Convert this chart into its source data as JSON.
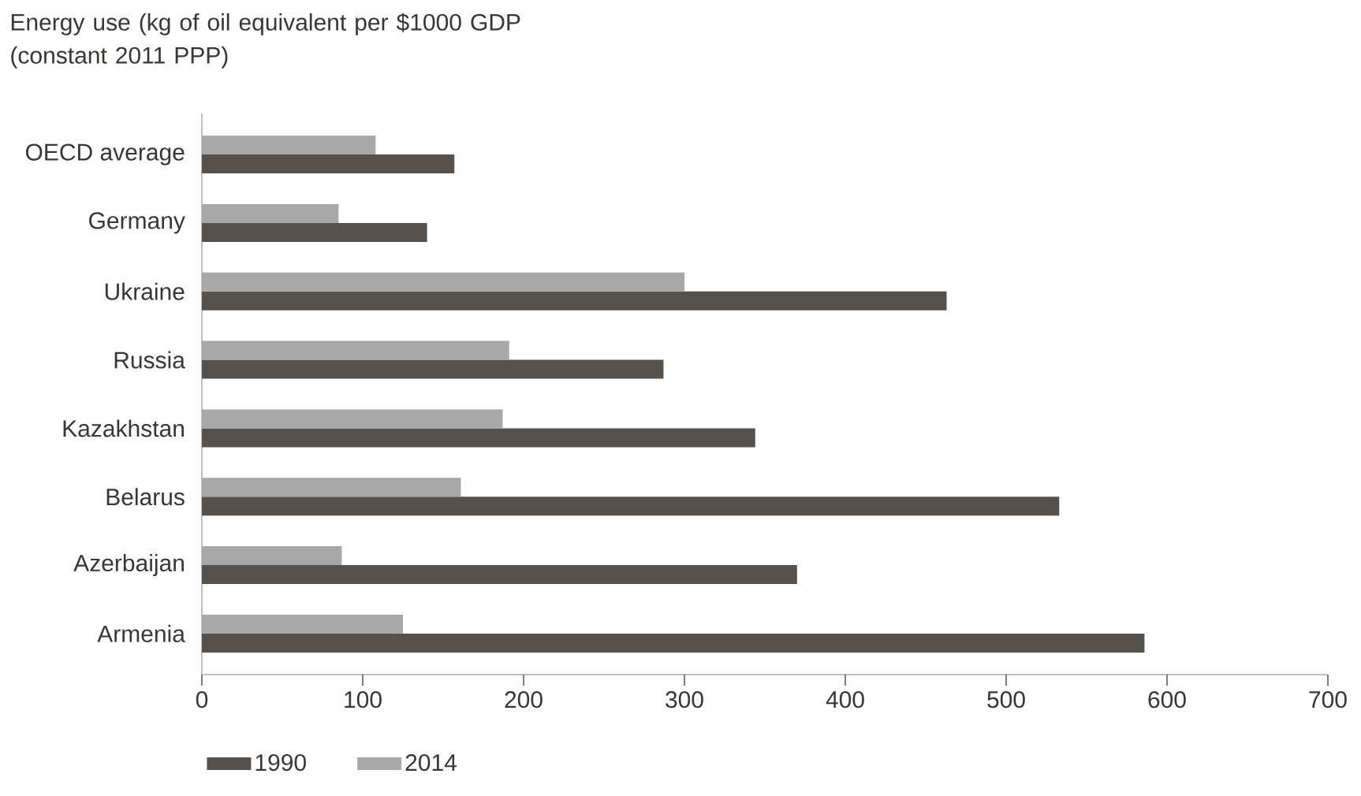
{
  "chart_data": {
    "type": "bar",
    "orientation": "horizontal",
    "title": "Energy use (kg of oil equivalent per $1000 GDP (constant 2011 PPP)",
    "categories": [
      "OECD average",
      "Germany",
      "Ukraine",
      "Russia",
      "Kazakhstan",
      "Belarus",
      "Azerbaijan",
      "Armenia"
    ],
    "series": [
      {
        "name": "1990",
        "color": "#57514d",
        "values": [
          157,
          140,
          463,
          287,
          344,
          533,
          370,
          586
        ]
      },
      {
        "name": "2014",
        "color": "#a8a8a8",
        "values": [
          108,
          85,
          300,
          191,
          187,
          161,
          87,
          125
        ]
      }
    ],
    "xlim": [
      0,
      700
    ],
    "xticks": [
      0,
      100,
      200,
      300,
      400,
      500,
      600,
      700
    ],
    "grid": false,
    "legend": "bottom left"
  }
}
